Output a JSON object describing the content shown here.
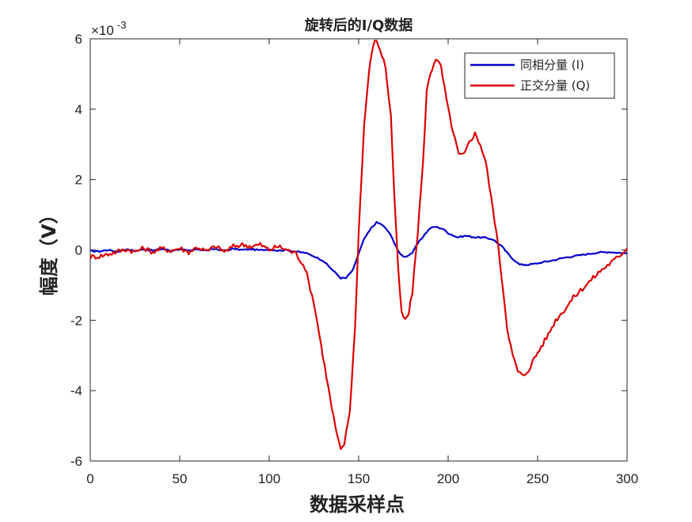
{
  "chart_data": {
    "type": "line",
    "title": "旋转后的I/Q数据",
    "xlabel": "数据采样点",
    "ylabel": "幅度（V）",
    "xlim": [
      0,
      300
    ],
    "ylim": [
      -6,
      6
    ],
    "xticks": [
      0,
      50,
      100,
      150,
      200,
      250,
      300
    ],
    "yticks": [
      -6,
      -4,
      -2,
      0,
      2,
      4,
      6
    ],
    "xtick_labels": [
      "0",
      "50",
      "100",
      "150",
      "200",
      "250",
      "300"
    ],
    "ytick_labels": [
      "-6",
      "-4",
      "-2",
      "0",
      "2",
      "4",
      "6"
    ],
    "y_exponent_label": "×10",
    "y_exponent_power": "-3",
    "grid": false,
    "legend_position": "top-right",
    "series": [
      {
        "name": "同相分量 (I)",
        "color": "#0000cc",
        "points": [
          [
            0,
            -0.03
          ],
          [
            5,
            -0.04
          ],
          [
            10,
            0.0
          ],
          [
            15,
            -0.05
          ],
          [
            20,
            0.02
          ],
          [
            25,
            -0.03
          ],
          [
            30,
            0.02
          ],
          [
            35,
            -0.02
          ],
          [
            40,
            0.03
          ],
          [
            45,
            -0.02
          ],
          [
            50,
            0.02
          ],
          [
            55,
            -0.03
          ],
          [
            60,
            0.02
          ],
          [
            65,
            -0.02
          ],
          [
            70,
            0.03
          ],
          [
            75,
            -0.02
          ],
          [
            80,
            0.03
          ],
          [
            85,
            0.0
          ],
          [
            90,
            0.02
          ],
          [
            95,
            -0.01
          ],
          [
            100,
            0.02
          ],
          [
            105,
            -0.02
          ],
          [
            110,
            0.0
          ],
          [
            115,
            -0.05
          ],
          [
            120,
            -0.08
          ],
          [
            125,
            -0.18
          ],
          [
            130,
            -0.3
          ],
          [
            135,
            -0.55
          ],
          [
            140,
            -0.8
          ],
          [
            143,
            -0.8
          ],
          [
            147,
            -0.55
          ],
          [
            150,
            -0.1
          ],
          [
            153,
            0.3
          ],
          [
            157,
            0.62
          ],
          [
            160,
            0.78
          ],
          [
            163,
            0.72
          ],
          [
            167,
            0.5
          ],
          [
            170,
            0.2
          ],
          [
            173,
            -0.12
          ],
          [
            176,
            -0.2
          ],
          [
            180,
            -0.08
          ],
          [
            183,
            0.18
          ],
          [
            187,
            0.45
          ],
          [
            190,
            0.62
          ],
          [
            193,
            0.66
          ],
          [
            197,
            0.6
          ],
          [
            200,
            0.48
          ],
          [
            205,
            0.36
          ],
          [
            210,
            0.4
          ],
          [
            215,
            0.36
          ],
          [
            220,
            0.35
          ],
          [
            225,
            0.3
          ],
          [
            230,
            0.1
          ],
          [
            235,
            -0.2
          ],
          [
            240,
            -0.42
          ],
          [
            245,
            -0.42
          ],
          [
            250,
            -0.38
          ],
          [
            255,
            -0.33
          ],
          [
            260,
            -0.28
          ],
          [
            265,
            -0.22
          ],
          [
            270,
            -0.18
          ],
          [
            275,
            -0.14
          ],
          [
            280,
            -0.1
          ],
          [
            285,
            -0.07
          ],
          [
            290,
            -0.06
          ],
          [
            295,
            -0.08
          ],
          [
            300,
            -0.1
          ]
        ]
      },
      {
        "name": "正交分量 (Q)",
        "color": "#dd0000",
        "points": [
          [
            0,
            -0.2
          ],
          [
            5,
            -0.18
          ],
          [
            10,
            -0.12
          ],
          [
            15,
            -0.05
          ],
          [
            20,
            0.02
          ],
          [
            25,
            -0.05
          ],
          [
            30,
            0.05
          ],
          [
            35,
            -0.06
          ],
          [
            40,
            0.04
          ],
          [
            45,
            -0.02
          ],
          [
            50,
            0.05
          ],
          [
            55,
            -0.06
          ],
          [
            60,
            0.08
          ],
          [
            65,
            -0.04
          ],
          [
            70,
            0.1
          ],
          [
            75,
            -0.05
          ],
          [
            80,
            0.1
          ],
          [
            85,
            0.15
          ],
          [
            90,
            0.1
          ],
          [
            95,
            0.15
          ],
          [
            100,
            0.0
          ],
          [
            105,
            0.1
          ],
          [
            110,
            0.0
          ],
          [
            115,
            -0.1
          ],
          [
            120,
            -0.5
          ],
          [
            125,
            -1.5
          ],
          [
            130,
            -3.0
          ],
          [
            135,
            -4.5
          ],
          [
            138,
            -5.3
          ],
          [
            140,
            -5.7
          ],
          [
            142,
            -5.5
          ],
          [
            145,
            -4.6
          ],
          [
            148,
            -2.2
          ],
          [
            150,
            0.5
          ],
          [
            153,
            3.5
          ],
          [
            156,
            5.2
          ],
          [
            159,
            6.0
          ],
          [
            162,
            5.7
          ],
          [
            165,
            5.2
          ],
          [
            168,
            3.8
          ],
          [
            170,
            1.5
          ],
          [
            172,
            -0.5
          ],
          [
            174,
            -1.8
          ],
          [
            176,
            -2.0
          ],
          [
            178,
            -1.8
          ],
          [
            180,
            -1.2
          ],
          [
            183,
            0.5
          ],
          [
            186,
            2.5
          ],
          [
            188,
            4.5
          ],
          [
            190,
            5.0
          ],
          [
            193,
            5.45
          ],
          [
            196,
            5.2
          ],
          [
            198,
            4.6
          ],
          [
            200,
            4.0
          ],
          [
            203,
            3.3
          ],
          [
            206,
            2.7
          ],
          [
            209,
            2.7
          ],
          [
            212,
            3.1
          ],
          [
            215,
            3.3
          ],
          [
            218,
            3.0
          ],
          [
            221,
            2.5
          ],
          [
            224,
            1.5
          ],
          [
            227,
            0.5
          ],
          [
            230,
            -0.8
          ],
          [
            233,
            -2.2
          ],
          [
            236,
            -3.0
          ],
          [
            239,
            -3.45
          ],
          [
            242,
            -3.6
          ],
          [
            245,
            -3.4
          ],
          [
            248,
            -3.1
          ],
          [
            252,
            -2.75
          ],
          [
            256,
            -2.4
          ],
          [
            260,
            -2.0
          ],
          [
            265,
            -1.7
          ],
          [
            270,
            -1.35
          ],
          [
            275,
            -1.1
          ],
          [
            280,
            -0.85
          ],
          [
            285,
            -0.6
          ],
          [
            290,
            -0.4
          ],
          [
            295,
            -0.2
          ],
          [
            300,
            0.05
          ]
        ]
      }
    ]
  }
}
